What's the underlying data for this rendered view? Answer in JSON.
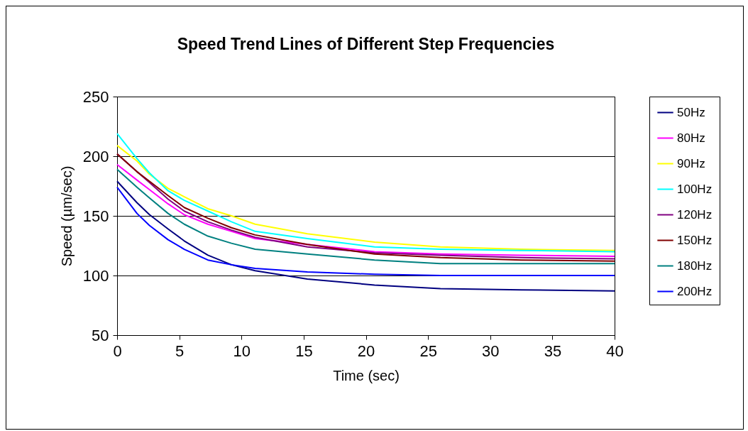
{
  "chart_data": {
    "type": "line",
    "title": "Speed Trend Lines of Different Step Frequencies",
    "xlabel": "Time (sec)",
    "ylabel": "Speed (µm/sec)",
    "x": [
      0,
      1.6,
      2.6,
      4.1,
      5.4,
      7.3,
      9.2,
      11.1,
      15.3,
      20.7,
      26,
      32.5,
      40
    ],
    "series": [
      {
        "name": "50Hz",
        "color": "#000080",
        "values": [
          179,
          161,
          151,
          139,
          129,
          117,
          109,
          104,
          97,
          92,
          89,
          88,
          87
        ]
      },
      {
        "name": "80Hz",
        "color": "#ff00ff",
        "values": [
          193,
          180,
          172,
          160,
          151,
          143,
          137,
          131,
          126,
          120,
          118,
          117,
          116
        ]
      },
      {
        "name": "90Hz",
        "color": "#ffff00",
        "values": [
          209,
          196,
          185,
          173,
          166,
          156,
          150,
          143,
          135,
          128,
          124,
          122,
          121
        ]
      },
      {
        "name": "100Hz",
        "color": "#00ffff",
        "values": [
          219,
          198,
          186,
          171,
          163,
          154,
          145,
          137,
          131,
          124,
          122,
          121,
          120
        ]
      },
      {
        "name": "120Hz",
        "color": "#800080",
        "values": [
          202,
          187,
          178,
          164,
          154,
          145,
          138,
          132,
          124,
          119,
          117,
          115,
          114
        ]
      },
      {
        "name": "150Hz",
        "color": "#800000",
        "values": [
          202,
          187,
          179,
          167,
          157,
          148,
          140,
          134,
          126,
          118,
          115,
          113,
          112
        ]
      },
      {
        "name": "180Hz",
        "color": "#008080",
        "values": [
          189,
          174,
          165,
          152,
          143,
          133,
          127,
          122,
          118,
          113,
          110,
          110,
          110
        ]
      },
      {
        "name": "200Hz",
        "color": "#0000ff",
        "values": [
          174,
          152,
          142,
          130,
          122,
          113,
          109,
          106,
          103,
          101,
          100,
          100,
          100
        ]
      }
    ],
    "xlim": [
      0,
      40
    ],
    "xticks": [
      0,
      5,
      10,
      15,
      20,
      25,
      30,
      35,
      40
    ],
    "ylim": [
      50,
      250
    ],
    "yticks": [
      50,
      100,
      150,
      200,
      250
    ],
    "grid": "y",
    "legend": "right"
  }
}
